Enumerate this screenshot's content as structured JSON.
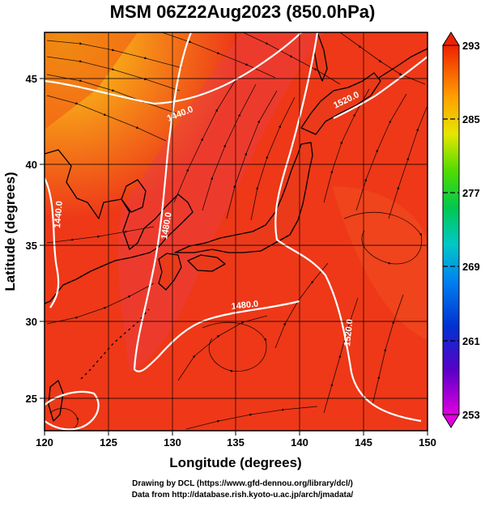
{
  "title": "MSM 06Z22Aug2023 (850.0hPa)",
  "map": {
    "xlabel": "Longitude (degrees)",
    "ylabel": "Latitude  (degrees)",
    "lon_range": [
      120,
      150
    ],
    "lat_range": [
      22.5,
      47.8
    ],
    "lon_ticks": [
      "120",
      "125",
      "130",
      "135",
      "140",
      "145",
      "150"
    ],
    "lat_ticks": [
      "25",
      "30",
      "35",
      "40",
      "45"
    ]
  },
  "colorbar": {
    "range": [
      253,
      293
    ],
    "labels": [
      "293",
      "285",
      "277",
      "269",
      "261",
      "253"
    ]
  },
  "contours": [
    {
      "label": "1440.0"
    },
    {
      "label": "1440.0"
    },
    {
      "label": "1480.0"
    },
    {
      "label": "1480.0"
    },
    {
      "label": "1520.0"
    },
    {
      "label": "1520.0"
    }
  ],
  "footer": {
    "line1": "Drawing by DCL (https://www.gfd-dennou.org/library/dcl/)",
    "line2": "Data from http://database.rish.kyoto-u.ac.jp/arch/jmadata/"
  }
}
